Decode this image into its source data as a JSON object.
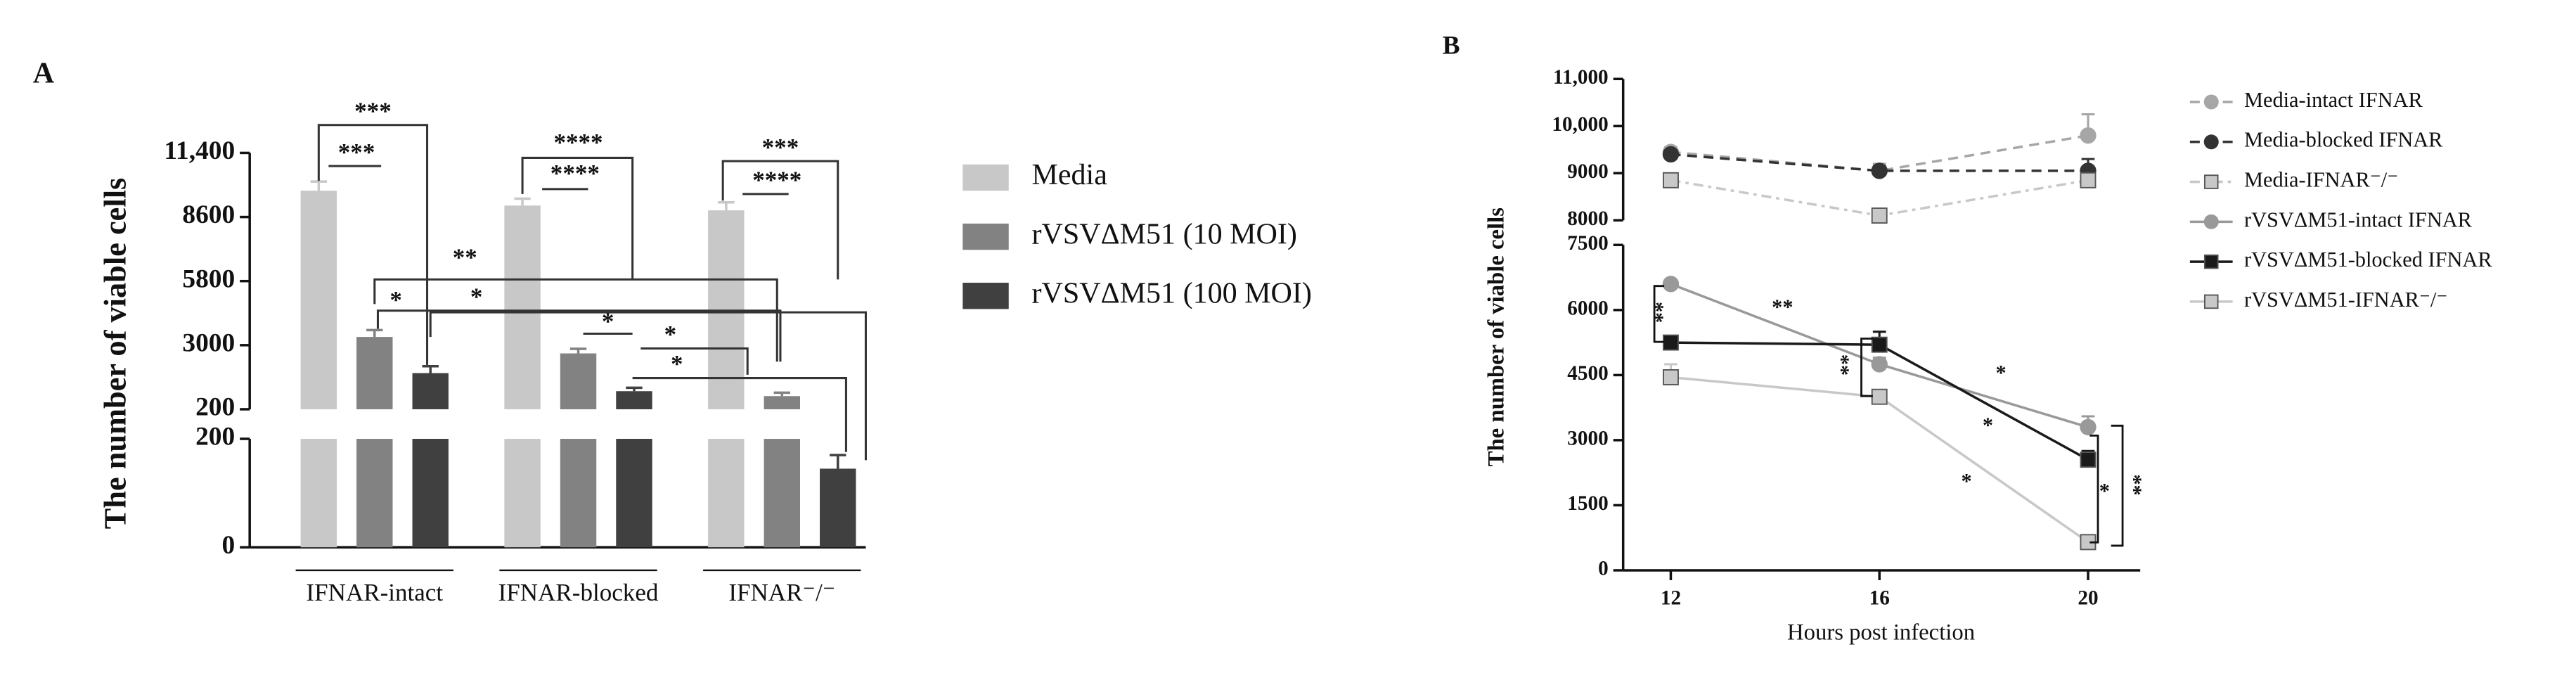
{
  "chart_data": [
    {
      "type": "bar",
      "panel_label": "A",
      "y_label": "The number of viable cells",
      "categories": [
        "IFNAR-intact",
        "IFNAR-blocked",
        "IFNAR⁻/⁻"
      ],
      "y_segments": [
        {
          "ylim": [
            0,
            200
          ],
          "yticks": [
            0,
            200
          ]
        },
        {
          "ylim": [
            200,
            11400
          ],
          "yticks": [
            200,
            3000,
            5800,
            8600,
            {
              "value": 11400,
              "label": "11,400"
            }
          ]
        }
      ],
      "series": [
        {
          "name": "Media",
          "color": "#c8c8c8",
          "values": [
            9750,
            9100,
            8890
          ],
          "errors": [
            400,
            300,
            350
          ]
        },
        {
          "name": "rVSVΔM51 (10 MOI)",
          "color": "#828282",
          "values": [
            3360,
            2640,
            775
          ],
          "errors": [
            300,
            200,
            150
          ]
        },
        {
          "name": "rVSVΔM51 (100 MOI)",
          "color": "#404040",
          "values": [
            1780,
            990,
            145
          ],
          "errors": [
            300,
            150,
            25
          ]
        }
      ],
      "annotations": [
        "***",
        "***",
        "****",
        "****",
        "***",
        "****",
        "**",
        "*",
        "*",
        "*",
        "*",
        "*"
      ]
    },
    {
      "type": "line",
      "panel_label": "B",
      "y_label": "The number of viable cells",
      "x_label": "Hours post infection",
      "x": [
        12,
        16,
        20
      ],
      "xlim": [
        11,
        21
      ],
      "xticks": [
        12,
        16,
        20
      ],
      "y_segments": [
        {
          "ylim": [
            0,
            7500
          ],
          "yticks": [
            0,
            1500,
            3000,
            4500,
            6000,
            7500
          ]
        },
        {
          "ylim": [
            8000,
            11000
          ],
          "yticks": [
            8000,
            9000,
            {
              "value": 10000,
              "label": "10,000"
            },
            {
              "value": 11000,
              "label": "11,000"
            }
          ]
        }
      ],
      "series": [
        {
          "name": "Media-intact IFNAR",
          "color": "#a6a6a6",
          "marker": "circle",
          "linestyle": "dashed",
          "values": [
            9450,
            9050,
            9800
          ],
          "errors": [
            100,
            150,
            450
          ]
        },
        {
          "name": "Media-blocked IFNAR",
          "color": "#333333",
          "marker": "circle",
          "linestyle": "dashed",
          "values": [
            9400,
            9050,
            9050
          ],
          "errors": [
            80,
            100,
            250
          ]
        },
        {
          "name": "Media-IFNAR⁻/⁻",
          "color": "#c8c8c8",
          "marker": "square",
          "linestyle": "dashdot",
          "values": [
            8850,
            8100,
            8850
          ],
          "errors": [
            120,
            150,
            100
          ]
        },
        {
          "name": "rVSVΔM51-intact IFNAR",
          "color": "#999999",
          "marker": "circle",
          "linestyle": "solid",
          "values": [
            6600,
            4750,
            3300
          ],
          "errors": [
            80,
            150,
            250
          ]
        },
        {
          "name": "rVSVΔM51-blocked IFNAR",
          "color": "#1a1a1a",
          "marker": "square",
          "linestyle": "solid",
          "values": [
            5250,
            5200,
            2550
          ],
          "errors": [
            150,
            300,
            200
          ]
        },
        {
          "name": "rVSVΔM51-IFNAR⁻/⁻",
          "color": "#c8c8c8",
          "marker": "square",
          "linestyle": "solid",
          "values": [
            4450,
            4000,
            650
          ],
          "errors": [
            300,
            150,
            100
          ]
        }
      ],
      "annotations": [
        "**",
        "**",
        "*",
        "**",
        "**",
        "*",
        "*",
        "*"
      ]
    }
  ]
}
